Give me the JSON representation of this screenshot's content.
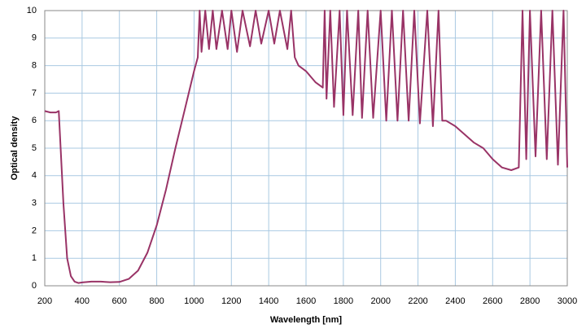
{
  "chart_data": {
    "type": "line",
    "x_label": "Wavelength [nm]",
    "y_label": "Optical density",
    "x": [
      200,
      230,
      260,
      275,
      285,
      300,
      320,
      340,
      360,
      380,
      400,
      450,
      500,
      550,
      600,
      650,
      700,
      750,
      800,
      850,
      900,
      950,
      1000,
      1020,
      1030,
      1040,
      1060,
      1080,
      1100,
      1120,
      1150,
      1180,
      1200,
      1230,
      1260,
      1300,
      1330,
      1360,
      1400,
      1430,
      1460,
      1500,
      1520,
      1540,
      1560,
      1600,
      1650,
      1690,
      1700,
      1710,
      1730,
      1750,
      1780,
      1800,
      1820,
      1850,
      1880,
      1900,
      1930,
      1960,
      2000,
      2030,
      2060,
      2090,
      2120,
      2150,
      2180,
      2210,
      2250,
      2280,
      2310,
      2330,
      2350,
      2400,
      2450,
      2500,
      2550,
      2600,
      2650,
      2700,
      2740,
      2760,
      2780,
      2800,
      2830,
      2860,
      2890,
      2920,
      2950,
      2980,
      3000
    ],
    "series": [
      {
        "name": "Optical density",
        "color": "#993366",
        "values": [
          6.35,
          6.3,
          6.3,
          6.35,
          5.0,
          3.0,
          1.0,
          0.35,
          0.15,
          0.1,
          0.12,
          0.15,
          0.15,
          0.13,
          0.14,
          0.25,
          0.55,
          1.2,
          2.2,
          3.5,
          5.0,
          6.4,
          7.8,
          8.3,
          10,
          8.5,
          10,
          8.6,
          10,
          8.6,
          10,
          8.6,
          10,
          8.5,
          10,
          8.7,
          10,
          8.8,
          10,
          8.8,
          10,
          8.6,
          10,
          8.3,
          8.0,
          7.8,
          7.4,
          7.2,
          10,
          6.8,
          10,
          6.5,
          10,
          6.2,
          10,
          6.2,
          10,
          6.1,
          10,
          6.1,
          10,
          6.0,
          10,
          6.0,
          10,
          6.0,
          10,
          5.9,
          10,
          5.8,
          10,
          6.0,
          6.0,
          5.8,
          5.5,
          5.2,
          5.0,
          4.6,
          4.3,
          4.2,
          4.3,
          10,
          4.6,
          10,
          4.7,
          10,
          4.6,
          10,
          4.4,
          10,
          4.3
        ]
      }
    ],
    "xlim": [
      200,
      3000
    ],
    "ylim": [
      0,
      10
    ],
    "xticks": [
      200,
      400,
      600,
      800,
      1000,
      1200,
      1400,
      1600,
      1800,
      2000,
      2200,
      2400,
      2600,
      2800,
      3000
    ],
    "yticks": [
      0,
      1,
      2,
      3,
      4,
      5,
      6,
      7,
      8,
      9,
      10
    ],
    "grid": true,
    "grid_color": "#a9c9e2"
  }
}
